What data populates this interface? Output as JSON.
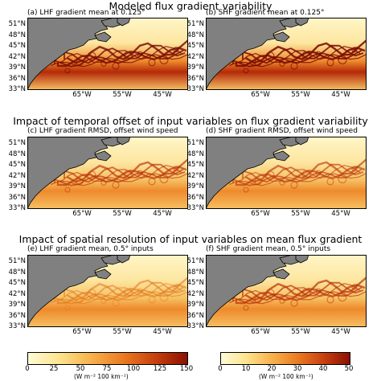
{
  "sections": [
    "Modeled flux gradient variability",
    "Impact of temporal offset of input variables on flux gradient variability",
    "Impact of spatial resolution of input variables on mean flux gradient"
  ],
  "panels": [
    {
      "label": "(a) LHF gradient mean at 0.125°",
      "variable": "LHF",
      "intensity": 0.8
    },
    {
      "label": "(b) SHF gradient mean at 0.125°",
      "variable": "SHF",
      "intensity": 0.9
    },
    {
      "label": "(c) LHF gradient RMSD, offset wind speed",
      "variable": "LHF",
      "intensity": 0.55
    },
    {
      "label": "(d) SHF gradient RMSD, offset wind speed",
      "variable": "SHF",
      "intensity": 0.45
    },
    {
      "label": "(e) LHF gradient mean, 0.5° inputs",
      "variable": "LHF",
      "intensity": 0.35
    },
    {
      "label": "(f) SHF gradient mean, 0.5° inputs",
      "variable": "SHF",
      "intensity": 0.6
    }
  ],
  "lat_labels": [
    "51°N",
    "48°N",
    "45°N",
    "42°N",
    "39°N",
    "36°N",
    "33°N"
  ],
  "lon_labels": [
    "65°W",
    "55°W",
    "45°W"
  ],
  "colorbars": [
    {
      "ticks": [
        "0",
        "25",
        "50",
        "75",
        "100",
        "125",
        "150"
      ],
      "unit": "(W m⁻² 100 km⁻¹)",
      "range": [
        0,
        150
      ]
    },
    {
      "ticks": [
        "0",
        "10",
        "20",
        "30",
        "40",
        "50"
      ],
      "unit": "(W m⁻² 100 km⁻¹)",
      "range": [
        0,
        50
      ]
    }
  ],
  "colors": {
    "land": "#808080",
    "ocean_low": "#fff6c8",
    "ocean_mid": "#f5a33a",
    "ocean_high": "#8a1002"
  }
}
